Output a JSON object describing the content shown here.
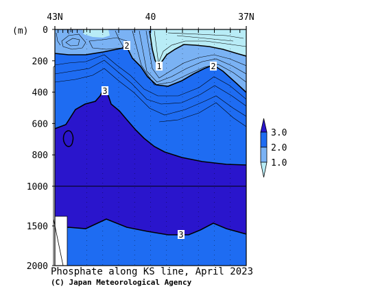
{
  "chart_data": {
    "type": "contour",
    "title": "Phosphate along KS line, April 2023",
    "credit": "(C) Japan Meteorological Agency",
    "ylabel": "(m)",
    "x_ticks": [
      "43N",
      "40",
      "37N"
    ],
    "xlim": [
      43,
      37
    ],
    "y_ticks_upper": [
      0,
      200,
      400,
      600,
      800,
      1000
    ],
    "y_ticks_lower": [
      1500,
      2000
    ],
    "ylim": [
      0,
      2000
    ],
    "y_scale_break": 1000,
    "contour_labels": [
      "2",
      "1",
      "2",
      "3",
      "3"
    ],
    "legend": {
      "levels": [
        "3.0",
        "2.0",
        "1.0"
      ],
      "colors": [
        "#2a15cc",
        "#1e6cf2",
        "#7ab2f4",
        "#b8ecf6"
      ]
    },
    "fill_colors": {
      "lt1": "#b8ecf6",
      "1to2": "#7ab2f4",
      "2to3": "#1e6cf2",
      "gt3": "#2a15cc"
    }
  }
}
